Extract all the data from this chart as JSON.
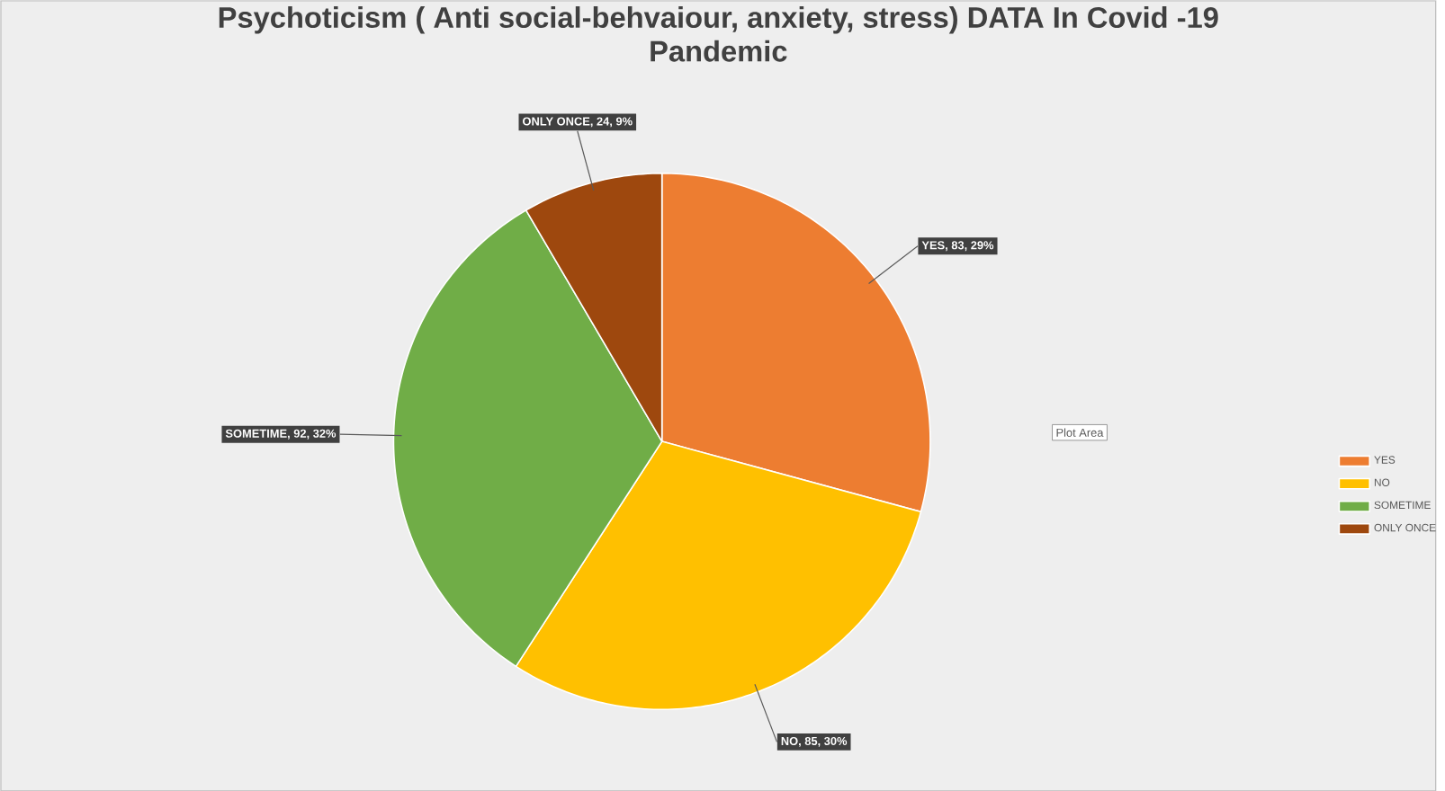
{
  "chart_data": {
    "type": "pie",
    "title": "Psychoticism ( Anti social-behvaiour, anxiety, stress) DATA In Covid -19 Pandemic",
    "categories": [
      "YES",
      "NO",
      "SOMETIME",
      "ONLY ONCE"
    ],
    "values": [
      83,
      85,
      92,
      24
    ],
    "colors": [
      "#ed7d31",
      "#ffc000",
      "#70ad47",
      "#9e480e"
    ],
    "value_labels": [
      "YES, 83, 29%",
      "NO, 85, 30%",
      "SOMETIME, 92, 32%",
      "ONLY ONCE, 24, 9%"
    ],
    "legend": "right",
    "annotations": [
      "Plot Area"
    ]
  }
}
